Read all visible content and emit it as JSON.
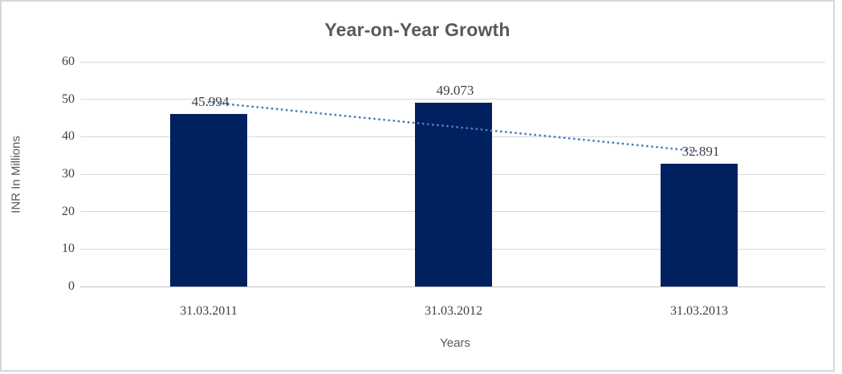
{
  "frame": {
    "border_color": "#d6d6d6",
    "background": "#ffffff"
  },
  "chart_data": {
    "type": "bar",
    "title": "Year-on-Year Growth",
    "xlabel": "Years",
    "ylabel": "INR In Millions",
    "categories": [
      "31.03.2011",
      "31.03.2012",
      "31.03.2013"
    ],
    "values": [
      45.994,
      49.073,
      32.891
    ],
    "data_labels": [
      "45.994",
      "49.073",
      "32.891"
    ],
    "yticks": [
      0,
      10,
      20,
      30,
      40,
      50,
      60
    ],
    "ylim": [
      0,
      60
    ],
    "grid": true,
    "legend": "none",
    "bar_color": "#002060",
    "gridline_color": "#d9d9d9",
    "axis_line_color": "#bfbfbf",
    "tick_text_color": "#3f3f3f",
    "title_color": "#595959",
    "axis_title_color": "#595959",
    "trendline": {
      "type": "linear",
      "style": "dotted",
      "color": "#4a7ebf",
      "start_value": 49.2,
      "end_value": 36.1
    }
  }
}
